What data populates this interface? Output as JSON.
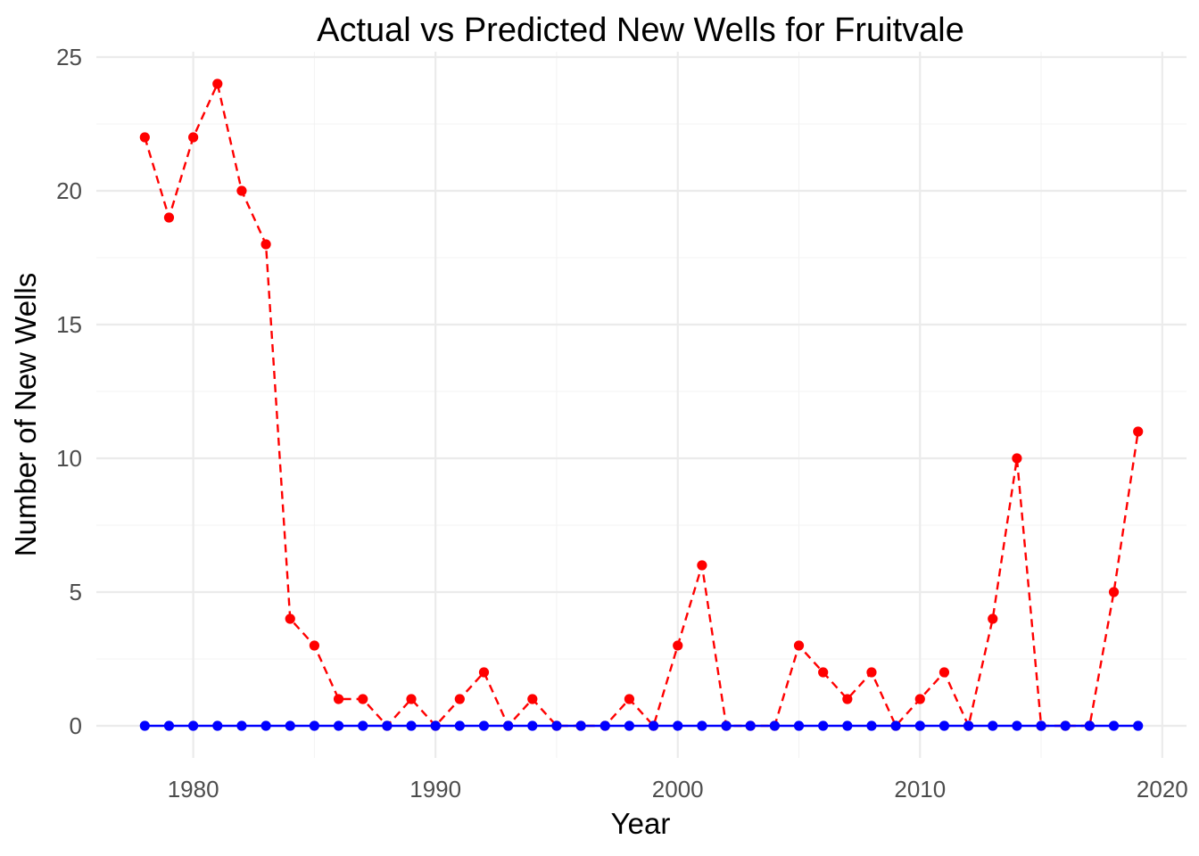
{
  "chart_data": {
    "type": "line",
    "title": "Actual vs Predicted New Wells for Fruitvale",
    "xlabel": "Year",
    "ylabel": "Number of New Wells",
    "xlim": [
      1976,
      2021
    ],
    "ylim": [
      -1.2,
      25.2
    ],
    "x_ticks": [
      1980,
      1990,
      2000,
      2010,
      2020
    ],
    "y_ticks": [
      0,
      5,
      10,
      15,
      20,
      25
    ],
    "grid": true,
    "legend": "none",
    "x": [
      1978,
      1979,
      1980,
      1981,
      1982,
      1983,
      1984,
      1985,
      1986,
      1987,
      1988,
      1989,
      1990,
      1991,
      1992,
      1993,
      1994,
      1995,
      1996,
      1997,
      1998,
      1999,
      2000,
      2001,
      2002,
      2003,
      2004,
      2005,
      2006,
      2007,
      2008,
      2009,
      2010,
      2011,
      2012,
      2013,
      2014,
      2015,
      2016,
      2017,
      2018,
      2019
    ],
    "series": [
      {
        "color": "#ff0000",
        "line_style": "dashed",
        "values": [
          22,
          19,
          22,
          24,
          20,
          18,
          4,
          3,
          1,
          1,
          0,
          1,
          0,
          1,
          2,
          0,
          1,
          0,
          0,
          0,
          1,
          0,
          3,
          6,
          0,
          0,
          0,
          3,
          2,
          1,
          2,
          0,
          1,
          2,
          0,
          4,
          10,
          0,
          0,
          0,
          5,
          11
        ]
      },
      {
        "color": "#0000ff",
        "line_style": "solid",
        "values": [
          0,
          0,
          0,
          0,
          0,
          0,
          0,
          0,
          0,
          0,
          0,
          0,
          0,
          0,
          0,
          0,
          0,
          0,
          0,
          0,
          0,
          0,
          0,
          0,
          0,
          0,
          0,
          0,
          0,
          0,
          0,
          0,
          0,
          0,
          0,
          0,
          0,
          0,
          0,
          0,
          0,
          0
        ]
      }
    ]
  }
}
